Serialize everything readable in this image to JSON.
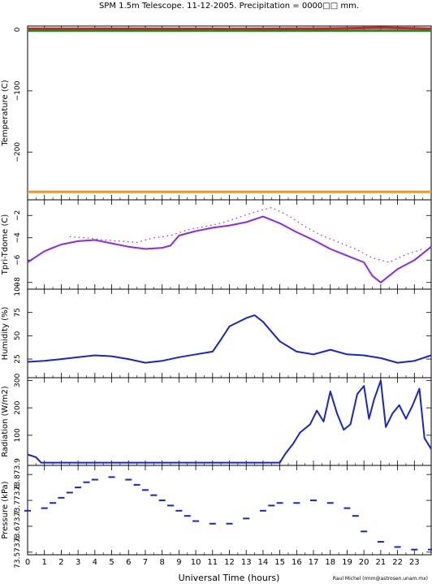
{
  "title": "SPM 1.5m Telescope. 11-12-2005. Precipitation = 0000",
  "title_glyph": "□□",
  "title_suffix": " mm.",
  "xlabel": "Universal Time (hours)",
  "credit": "Raul Michel (rmm@astrosen.unam.mx)",
  "colors": {
    "red": "#d42020",
    "green": "#1a8a2a",
    "orange": "#ff9020",
    "purple": "#8c2be2",
    "blue": "#1626c8"
  },
  "chart_data": [
    {
      "type": "line",
      "ylabel": "Temperature (C)",
      "ylim": [
        -278,
        6
      ],
      "yticks": [
        0,
        -100,
        -200
      ],
      "ytick_labels": [
        "0",
        "−100",
        "−200"
      ],
      "xlim": [
        0,
        24
      ],
      "series": [
        {
          "color": "red",
          "x": [
            0,
            3,
            6,
            9,
            12,
            15,
            18,
            21,
            24
          ],
          "y": [
            1.6,
            1.5,
            1.8,
            1.4,
            1.2,
            1.6,
            2.0,
            3.2,
            1.8
          ]
        },
        {
          "color": "green",
          "x": [
            0,
            24
          ],
          "y": [
            -1.5,
            -1.5
          ]
        },
        {
          "color": "orange",
          "x": [
            0,
            24
          ],
          "y": [
            -265,
            -265
          ]
        }
      ]
    },
    {
      "type": "line",
      "ylabel": "Tpri-Tdome (C)",
      "ylim": [
        -8.6,
        -0.6
      ],
      "yticks": [
        -2,
        -4,
        -6,
        -8
      ],
      "ytick_labels": [
        "−2",
        "−4",
        "−6",
        "−8"
      ],
      "xlim": [
        0,
        24
      ],
      "series": [
        {
          "color": "purple",
          "x": [
            0,
            0.5,
            1,
            1.5,
            2,
            3,
            4,
            5,
            6,
            7,
            8,
            8.5,
            9,
            10,
            11,
            12,
            13,
            14,
            15,
            16,
            17,
            18,
            19,
            20,
            20.5,
            21,
            22,
            23,
            24
          ],
          "y": [
            -6.2,
            -5.7,
            -5.2,
            -4.9,
            -4.6,
            -4.3,
            -4.2,
            -4.5,
            -4.8,
            -5.0,
            -4.9,
            -4.7,
            -3.8,
            -3.4,
            -3.1,
            -2.9,
            -2.6,
            -2.1,
            -2.7,
            -3.5,
            -4.2,
            -5.0,
            -5.6,
            -6.2,
            -7.4,
            -8.0,
            -6.8,
            -6.0,
            -4.8
          ]
        },
        {
          "color": "purple",
          "x": [
            2.5,
            3.5,
            4.5,
            5.5,
            6.5,
            7.5,
            8.5,
            9.5,
            10.5,
            11.5,
            12.5,
            13.5,
            14.5,
            15.5,
            16.5,
            17.5,
            18.5,
            19.5,
            20.5,
            21.5,
            22.5,
            23.5
          ],
          "y": [
            -3.9,
            -4.0,
            -4.2,
            -4.3,
            -4.4,
            -4.0,
            -3.8,
            -3.3,
            -3.0,
            -2.7,
            -2.2,
            -1.7,
            -1.3,
            -2.0,
            -3.0,
            -3.8,
            -4.4,
            -5.0,
            -5.8,
            -6.2,
            -5.5,
            -5.0
          ]
        }
      ]
    },
    {
      "type": "line",
      "ylabel": "Humidity (%)",
      "ylim": [
        5,
        100
      ],
      "yticks": [
        25,
        50,
        75,
        100
      ],
      "ytick_labels": [
        "25",
        "50",
        "75",
        "100"
      ],
      "xlim": [
        0,
        24
      ],
      "series": [
        {
          "color": "blue",
          "x": [
            0,
            1,
            2,
            3,
            4,
            5,
            6,
            7,
            8,
            9,
            10,
            11,
            11.5,
            12,
            13,
            13.5,
            14,
            15,
            16,
            17,
            18,
            19,
            20,
            21,
            22,
            23,
            24
          ],
          "y": [
            22,
            23,
            25,
            27,
            29,
            28,
            25,
            21,
            23,
            27,
            30,
            33,
            46,
            60,
            69,
            72,
            65,
            44,
            33,
            30,
            35,
            30,
            29,
            26,
            21,
            23,
            29
          ]
        }
      ]
    },
    {
      "type": "line",
      "ylabel": "Radiation (W/m2)",
      "ylim": [
        -10,
        310
      ],
      "yticks": [
        100,
        200,
        300
      ],
      "ytick_labels": [
        "100",
        "200",
        "300"
      ],
      "xlim": [
        0,
        24
      ],
      "series": [
        {
          "color": "blue",
          "x": [
            0,
            0.5,
            0.8,
            15,
            15.3,
            15.8,
            16.2,
            16.8,
            17.2,
            17.6,
            18.0,
            18.4,
            18.8,
            19.2,
            19.6,
            20.0,
            20.3,
            20.6,
            21.0,
            21.3,
            21.7,
            22.1,
            22.5,
            22.9,
            23.3,
            23.6,
            24
          ],
          "y": [
            30,
            20,
            0,
            0,
            30,
            70,
            110,
            140,
            190,
            150,
            260,
            180,
            120,
            140,
            250,
            280,
            160,
            230,
            300,
            130,
            180,
            210,
            160,
            210,
            270,
            90,
            50
          ]
        }
      ]
    },
    {
      "type": "scatter",
      "ylabel": "Pressure (kPa)",
      "ylim": [
        73.56,
        73.905
      ],
      "yticks": [
        73.57,
        73.67,
        73.77,
        73.87
      ],
      "ytick_labels": [
        "73.5",
        "73.6",
        "73.7",
        "73.8"
      ],
      "ytick_tails": [
        "73.6",
        "73.7",
        "73.8",
        "73.9"
      ],
      "xlim": [
        0,
        24
      ],
      "series": [
        {
          "color": "blue",
          "x": [
            0,
            1,
            1.5,
            2,
            2.5,
            3,
            3.5,
            4,
            5,
            6,
            6.5,
            7,
            7.5,
            8,
            8.5,
            9,
            9.5,
            10,
            11,
            12,
            13,
            14,
            14.5,
            15,
            16,
            17,
            18,
            19,
            19.5,
            20,
            21,
            22,
            23,
            24
          ],
          "y": [
            73.73,
            73.74,
            73.76,
            73.78,
            73.8,
            73.82,
            73.84,
            73.85,
            73.86,
            73.85,
            73.83,
            73.81,
            73.79,
            73.77,
            73.75,
            73.73,
            73.71,
            73.69,
            73.68,
            73.68,
            73.7,
            73.73,
            73.75,
            73.76,
            73.76,
            73.77,
            73.76,
            73.74,
            73.71,
            73.65,
            73.61,
            73.59,
            73.58,
            73.58
          ]
        }
      ]
    }
  ],
  "xticks": [
    0,
    1,
    2,
    3,
    4,
    5,
    6,
    7,
    8,
    9,
    10,
    11,
    12,
    13,
    14,
    15,
    16,
    17,
    18,
    19,
    20,
    21,
    22,
    23
  ]
}
